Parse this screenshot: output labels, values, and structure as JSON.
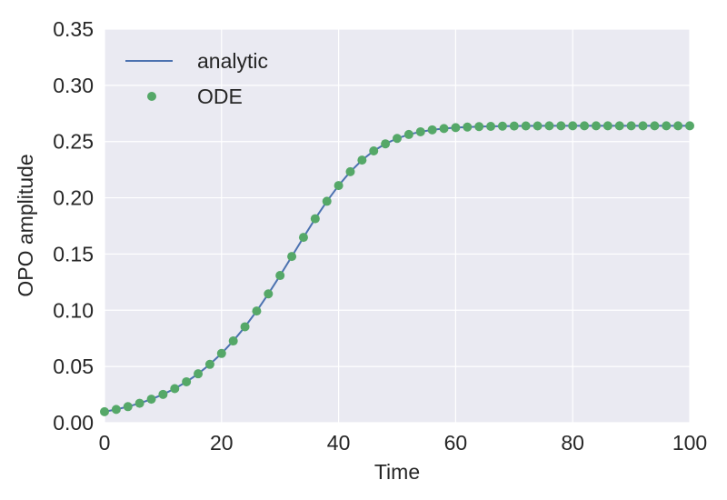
{
  "chart_data": {
    "type": "line",
    "xlabel": "Time",
    "ylabel": "OPO amplitude",
    "xlim": [
      0,
      100
    ],
    "ylim": [
      0,
      0.35
    ],
    "xticks": [
      0,
      20,
      40,
      60,
      80,
      100
    ],
    "xtick_labels": [
      "0",
      "20",
      "40",
      "60",
      "80",
      "100"
    ],
    "yticks": [
      0,
      0.05,
      0.1,
      0.15,
      0.2,
      0.25,
      0.3,
      0.35
    ],
    "ytick_labels": [
      "0.00",
      "0.05",
      "0.10",
      "0.15",
      "0.20",
      "0.25",
      "0.30",
      "0.35"
    ],
    "grid": true,
    "legend_position": "top-left",
    "background_color": "#eaeaf2",
    "series": [
      {
        "name": "analytic",
        "style": "line",
        "color": "#4c72b0",
        "x": [
          0,
          2,
          4,
          6,
          8,
          10,
          12,
          14,
          16,
          18,
          20,
          22,
          24,
          26,
          28,
          30,
          32,
          34,
          36,
          38,
          40,
          42,
          44,
          46,
          48,
          50,
          52,
          54,
          56,
          58,
          60,
          64,
          68,
          72,
          76,
          80,
          84,
          88,
          92,
          96,
          100
        ],
        "y": [
          0.0098,
          0.0118,
          0.0143,
          0.0173,
          0.0209,
          0.0252,
          0.0303,
          0.0364,
          0.0435,
          0.0519,
          0.0616,
          0.0727,
          0.0853,
          0.0993,
          0.1146,
          0.1309,
          0.1478,
          0.1648,
          0.1814,
          0.1969,
          0.2109,
          0.2232,
          0.2335,
          0.2417,
          0.248,
          0.2528,
          0.2563,
          0.2587,
          0.2604,
          0.2616,
          0.2624,
          0.2633,
          0.2637,
          0.2639,
          0.264,
          0.264,
          0.264,
          0.264,
          0.264,
          0.264,
          0.264
        ]
      },
      {
        "name": "ODE",
        "style": "markers",
        "color": "#55a868",
        "x": [
          0,
          2,
          4,
          6,
          8,
          10,
          12,
          14,
          16,
          18,
          20,
          22,
          24,
          26,
          28,
          30,
          32,
          34,
          36,
          38,
          40,
          42,
          44,
          46,
          48,
          50,
          52,
          54,
          56,
          58,
          60,
          62,
          64,
          66,
          68,
          70,
          72,
          74,
          76,
          78,
          80,
          82,
          84,
          86,
          88,
          90,
          92,
          94,
          96,
          98,
          100
        ],
        "y": [
          0.0098,
          0.0118,
          0.0143,
          0.0173,
          0.0209,
          0.0252,
          0.0303,
          0.0364,
          0.0435,
          0.0519,
          0.0616,
          0.0727,
          0.0853,
          0.0993,
          0.1146,
          0.1309,
          0.1478,
          0.1648,
          0.1814,
          0.1969,
          0.2109,
          0.2232,
          0.2335,
          0.2417,
          0.248,
          0.2528,
          0.2563,
          0.2587,
          0.2604,
          0.2616,
          0.2624,
          0.2629,
          0.2633,
          0.2635,
          0.2637,
          0.2638,
          0.2639,
          0.2639,
          0.264,
          0.264,
          0.264,
          0.264,
          0.264,
          0.264,
          0.264,
          0.264,
          0.264,
          0.264,
          0.264,
          0.264,
          0.264
        ]
      }
    ]
  }
}
